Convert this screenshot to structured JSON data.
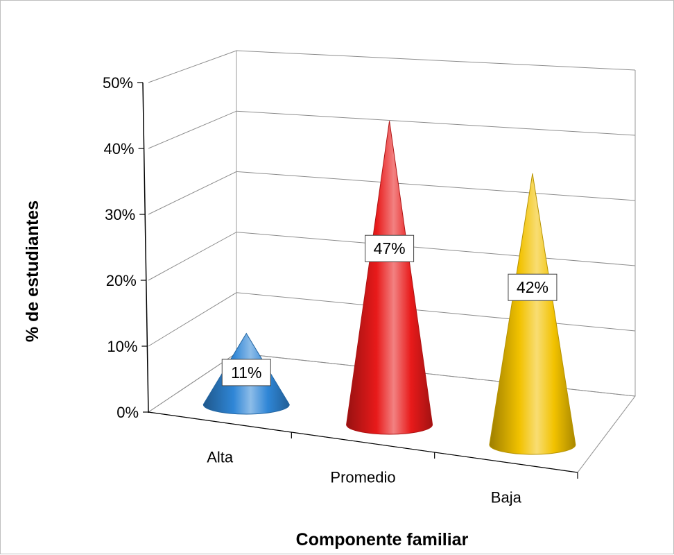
{
  "chart_data": {
    "type": "bar",
    "shape": "cone-3d",
    "categories": [
      "Alta",
      "Promedio",
      "Baja"
    ],
    "values": [
      11,
      47,
      42
    ],
    "data_labels": [
      "11%",
      "47%",
      "42%"
    ],
    "colors": [
      "#2f86d6",
      "#e81a1a",
      "#f2c200"
    ],
    "title": "",
    "xlabel": "Componente familiar",
    "ylabel": "% de estudiantes",
    "ylim": [
      0,
      50
    ],
    "yticks": [
      "0%",
      "10%",
      "20%",
      "30%",
      "40%",
      "50%"
    ],
    "grid": true,
    "legend": "none"
  }
}
